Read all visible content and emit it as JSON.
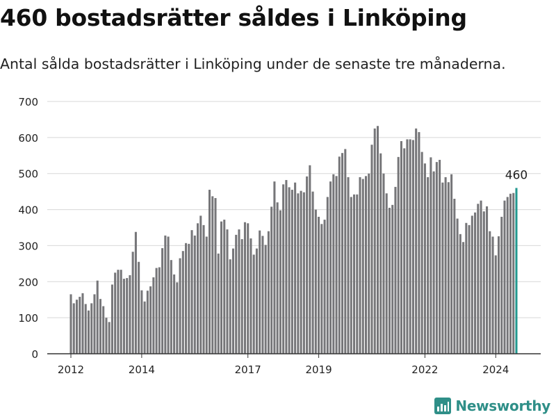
{
  "title": "460 bostadsrätter såldes i Linköping",
  "subtitle": "Antal sålda bostadsrätter i Linköping under de senaste tre månaderna.",
  "brand": {
    "name": "Newsworthy",
    "icon": "bar-chart-logo-icon"
  },
  "colors": {
    "bar": "#767679",
    "highlight": "#22988f",
    "grid": "#d7d7d7",
    "axis": "#333333",
    "text": "#222222",
    "brand": "#2f8f88"
  },
  "chart_data": {
    "type": "bar",
    "title": "",
    "xlabel": "",
    "ylabel": "",
    "ylim": [
      0,
      700
    ],
    "yticks": [
      0,
      100,
      200,
      300,
      400,
      500,
      600,
      700
    ],
    "xticks": [
      {
        "label": "2012",
        "index": 0
      },
      {
        "label": "2014",
        "index": 24
      },
      {
        "label": "2017",
        "index": 60
      },
      {
        "label": "2019",
        "index": 84
      },
      {
        "label": "2022",
        "index": 120
      },
      {
        "label": "2024",
        "index": 144
      }
    ],
    "grid": true,
    "highlight_index": 151,
    "annotations": [
      {
        "index": 151,
        "text": "460"
      }
    ],
    "values": [
      165,
      140,
      150,
      158,
      168,
      138,
      120,
      140,
      165,
      203,
      152,
      132,
      100,
      88,
      192,
      225,
      233,
      233,
      208,
      210,
      218,
      283,
      338,
      255,
      176,
      145,
      175,
      187,
      212,
      238,
      240,
      293,
      328,
      325,
      260,
      220,
      198,
      265,
      285,
      307,
      305,
      343,
      328,
      362,
      383,
      357,
      325,
      455,
      437,
      432,
      278,
      367,
      372,
      345,
      262,
      292,
      330,
      345,
      318,
      365,
      362,
      320,
      275,
      292,
      342,
      327,
      302,
      340,
      408,
      478,
      420,
      398,
      470,
      482,
      462,
      455,
      475,
      445,
      452,
      448,
      492,
      523,
      450,
      400,
      380,
      360,
      372,
      435,
      478,
      498,
      493,
      547,
      557,
      568,
      490,
      435,
      442,
      442,
      490,
      485,
      493,
      500,
      580,
      625,
      632,
      556,
      500,
      445,
      405,
      413,
      463,
      546,
      590,
      570,
      595,
      595,
      593,
      625,
      615,
      560,
      528,
      490,
      545,
      506,
      532,
      538,
      475,
      490,
      476,
      498,
      430,
      375,
      332,
      310,
      363,
      357,
      383,
      392,
      416,
      425,
      395,
      409,
      340,
      325,
      273,
      326,
      380,
      425,
      435,
      444,
      446,
      460
    ]
  }
}
